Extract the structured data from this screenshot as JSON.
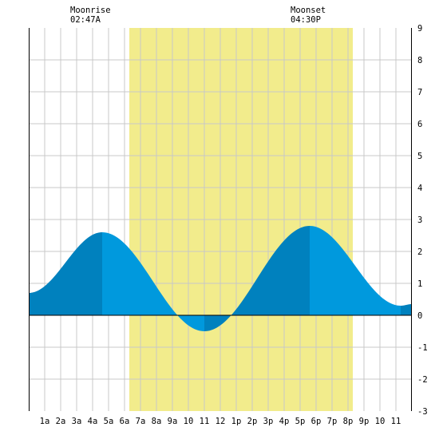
{
  "moon": {
    "rise_label": "Moonrise",
    "rise_time": "02:47A",
    "set_label": "Moonset",
    "set_time": "04:30P"
  },
  "chart_data": {
    "type": "area",
    "title": "",
    "xlabel": "",
    "ylabel": "",
    "xlim": [
      0,
      24
    ],
    "ylim": [
      -3,
      9
    ],
    "grid": true,
    "x_tick_labels": [
      "1a",
      "2a",
      "3a",
      "4a",
      "5a",
      "6a",
      "7a",
      "8a",
      "9a",
      "10",
      "11",
      "12",
      "1p",
      "2p",
      "3p",
      "4p",
      "5p",
      "6p",
      "7p",
      "8p",
      "9p",
      "10",
      "11"
    ],
    "y_tick_labels": [
      "-3",
      "-2",
      "-1",
      "0",
      "1",
      "2",
      "3",
      "4",
      "5",
      "6",
      "7",
      "8",
      "9"
    ],
    "daylight": {
      "start_hour": 6.3,
      "end_hour": 20.3
    },
    "tide_extrema": [
      {
        "hour": 0.0,
        "height": 0.7
      },
      {
        "hour": 4.6,
        "height": 2.6
      },
      {
        "hour": 11.0,
        "height": -0.5
      },
      {
        "hour": 17.6,
        "height": 2.8
      },
      {
        "hour": 23.3,
        "height": 0.3
      },
      {
        "hour": 24.0,
        "height": 0.35
      }
    ],
    "colors": {
      "daylight": "#f2ec8c",
      "tide_rising": "#0081be",
      "tide_falling": "#0099dd",
      "grid": "#c8c8c8",
      "zero_line": "#000000"
    }
  }
}
